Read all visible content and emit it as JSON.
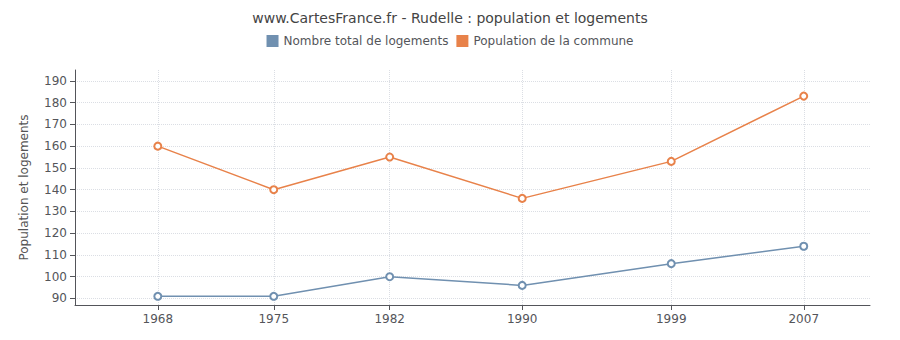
{
  "chart_data": {
    "type": "line",
    "title": "www.CartesFrance.fr - Rudelle : population et logements",
    "ylabel": "Population et logements",
    "x": [
      1968,
      1975,
      1982,
      1990,
      1999,
      2007
    ],
    "series": [
      {
        "name": "Nombre total de logements",
        "color": "#7090b0",
        "values": [
          91,
          91,
          100,
          96,
          106,
          114
        ]
      },
      {
        "name": "Population de la commune",
        "color": "#e8824a",
        "values": [
          160,
          140,
          155,
          136,
          153,
          183
        ]
      }
    ],
    "xlim": [
      1963,
      2011
    ],
    "xticks": [
      1968,
      1975,
      1982,
      1990,
      1999,
      2007
    ],
    "ylim": [
      87,
      195
    ],
    "yticks": [
      90,
      100,
      110,
      120,
      130,
      140,
      150,
      160,
      170,
      180,
      190
    ],
    "grid": true,
    "legend": "top",
    "marker": "circle"
  }
}
